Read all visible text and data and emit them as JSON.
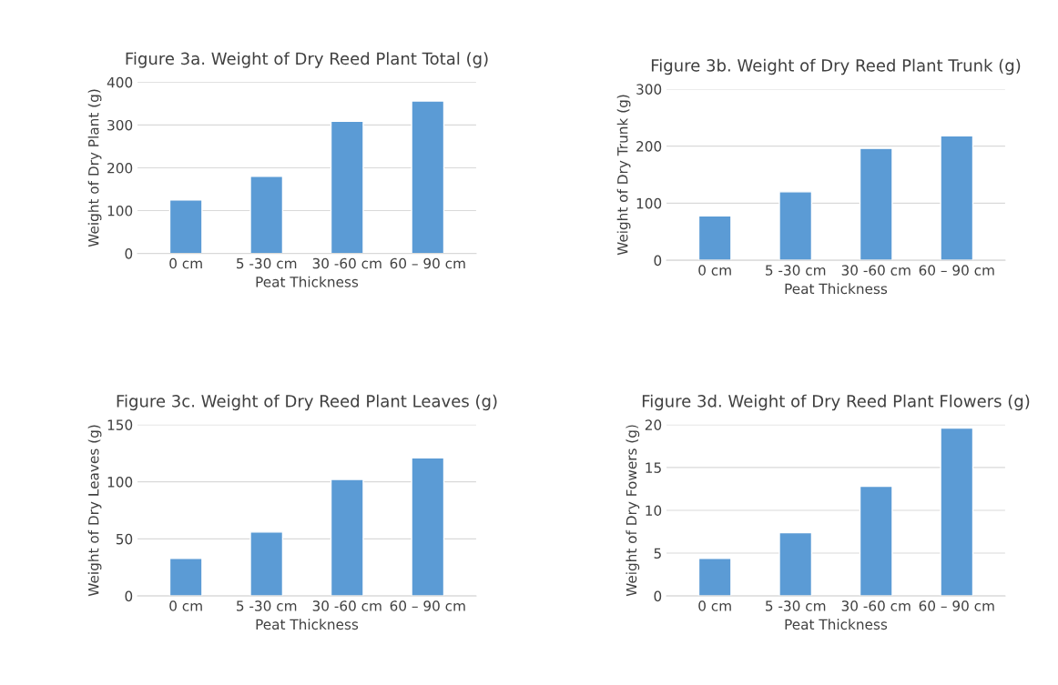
{
  "chart_data": [
    {
      "type": "bar",
      "title": "Figure 3a. Weight of Dry Reed Plant Total (g)",
      "xlabel": "Peat Thickness",
      "ylabel": "Weight of Dry Plant (g)",
      "categories": [
        "0 cm",
        "5 -30 cm",
        "30 -60 cm",
        "60 – 90 cm"
      ],
      "values": [
        125,
        180,
        309,
        356
      ],
      "color": "#5b9bd5",
      "ylim": [
        0,
        400
      ],
      "yticks": [
        0,
        100,
        200,
        300,
        400
      ],
      "grid": "y"
    },
    {
      "type": "bar",
      "title": "Figure 3b. Weight of Dry Reed Plant Trunk (g)",
      "xlabel": "Peat Thickness",
      "ylabel": "Weight of Dry Trunk (g)",
      "categories": [
        "0 cm",
        "5 -30 cm",
        "30 -60 cm",
        "60 – 90 cm"
      ],
      "values": [
        78,
        120,
        196,
        218
      ],
      "color": "#5b9bd5",
      "ylim": [
        0,
        300
      ],
      "yticks": [
        0,
        100,
        200,
        300
      ],
      "grid": "y"
    },
    {
      "type": "bar",
      "title": "Figure 3c. Weight of Dry Reed Plant Leaves (g)",
      "xlabel": "Peat Thickness",
      "ylabel": "Weight of Dry Leaves (g)",
      "categories": [
        "0 cm",
        "5 -30 cm",
        "30 -60 cm",
        "60 – 90 cm"
      ],
      "values": [
        33,
        56,
        102,
        121
      ],
      "color": "#5b9bd5",
      "ylim": [
        0,
        150
      ],
      "yticks": [
        0,
        50,
        100,
        150
      ],
      "grid": "y"
    },
    {
      "type": "bar",
      "title": "Figure 3d. Weight of Dry Reed Plant Flowers (g)",
      "xlabel": "Peat Thickness",
      "ylabel": "Weight of Dry Fowers (g)",
      "categories": [
        "0 cm",
        "5 -30 cm",
        "30 -60 cm",
        "60 – 90 cm"
      ],
      "values": [
        4.4,
        7.4,
        12.8,
        19.6
      ],
      "color": "#5b9bd5",
      "ylim": [
        0,
        20
      ],
      "yticks": [
        0,
        5,
        10,
        15,
        20
      ],
      "grid": "y"
    }
  ]
}
